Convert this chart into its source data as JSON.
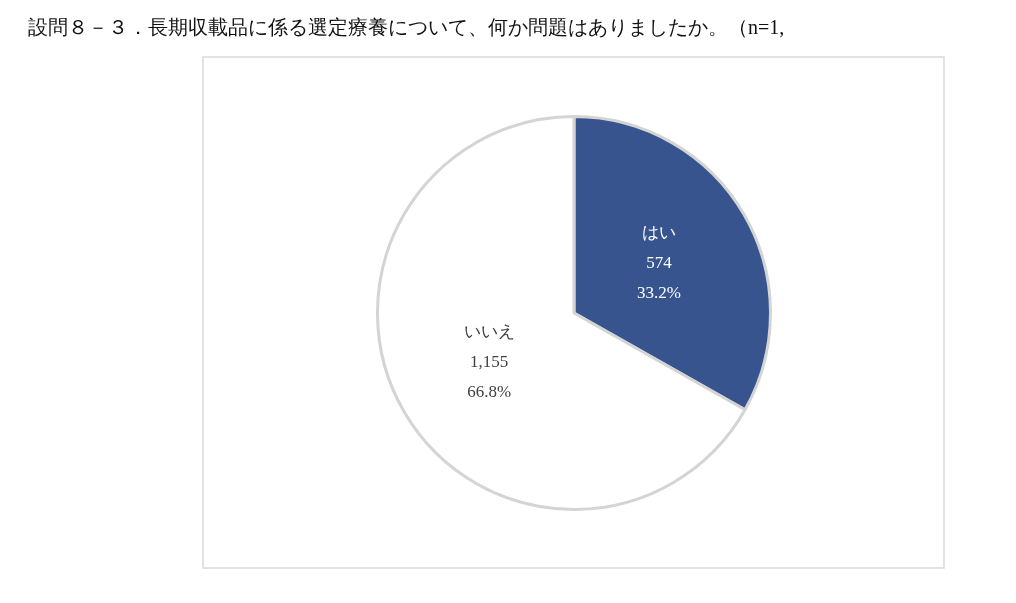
{
  "chart_data": {
    "type": "pie",
    "title": "設問８－３．長期収載品に係る選定療養について、何か問題はありましたか。（n=1,",
    "categories": [
      "はい",
      "いいえ"
    ],
    "values": [
      574,
      1155
    ],
    "colors": [
      "#38548f",
      "#ffffff"
    ],
    "value_labels": [
      "574\n33.2%",
      "1,155\n66.8%"
    ],
    "legend": false
  }
}
